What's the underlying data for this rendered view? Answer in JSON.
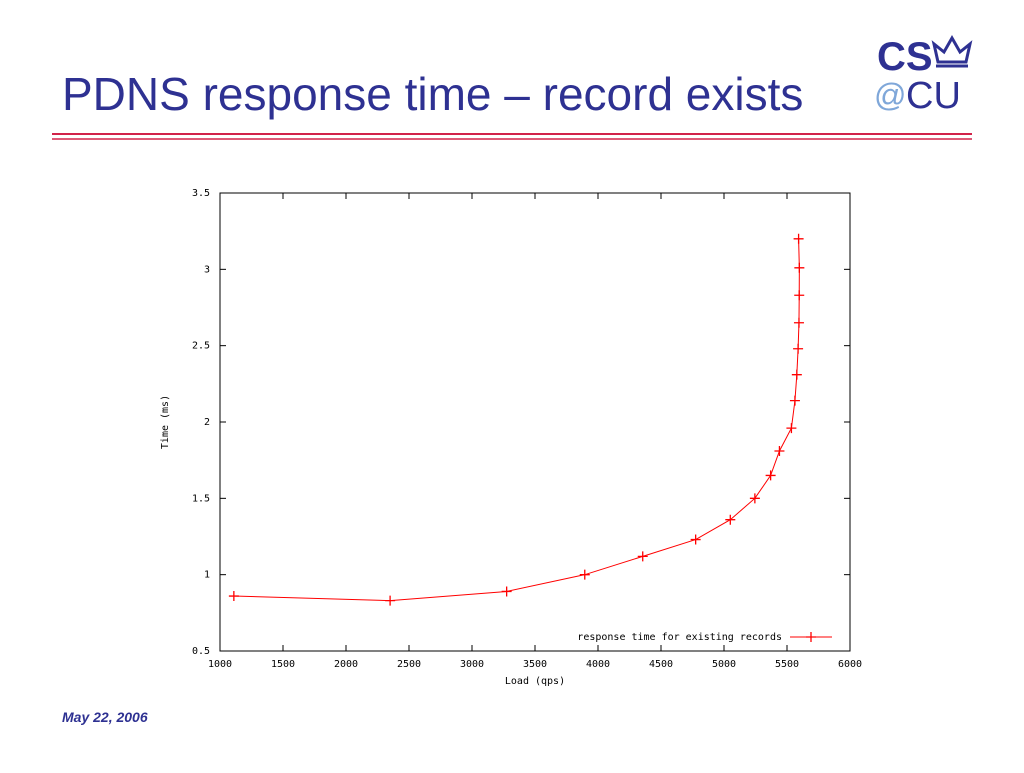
{
  "slide": {
    "title": "PDNS response time – record exists",
    "date": "May 22, 2006",
    "logo": {
      "top": "CS",
      "at": "@",
      "bottom": "CU"
    }
  },
  "chart_data": {
    "type": "line",
    "x_label": "Load (qps)",
    "y_label": "Time (ms)",
    "x": [
      1110,
      2350,
      3275,
      3895,
      4355,
      4775,
      5050,
      5245,
      5370,
      5440,
      5535,
      5563,
      5578,
      5588,
      5595,
      5597,
      5598,
      5592
    ],
    "series": [
      {
        "name": "response time for existing records",
        "color": "#ff0000",
        "values": [
          0.86,
          0.83,
          0.89,
          1.0,
          1.12,
          1.23,
          1.36,
          1.5,
          1.65,
          1.81,
          1.96,
          2.14,
          2.31,
          2.48,
          2.65,
          2.83,
          3.01,
          3.2
        ]
      }
    ],
    "xlim": [
      1000,
      6000
    ],
    "xticks": [
      1000,
      1500,
      2000,
      2500,
      3000,
      3500,
      4000,
      4500,
      5000,
      5500,
      6000
    ],
    "ylim": [
      0.5,
      3.5
    ],
    "yticks": [
      0.5,
      1,
      1.5,
      2,
      2.5,
      3,
      3.5
    ],
    "grid": false,
    "legend": "bottom-right"
  }
}
